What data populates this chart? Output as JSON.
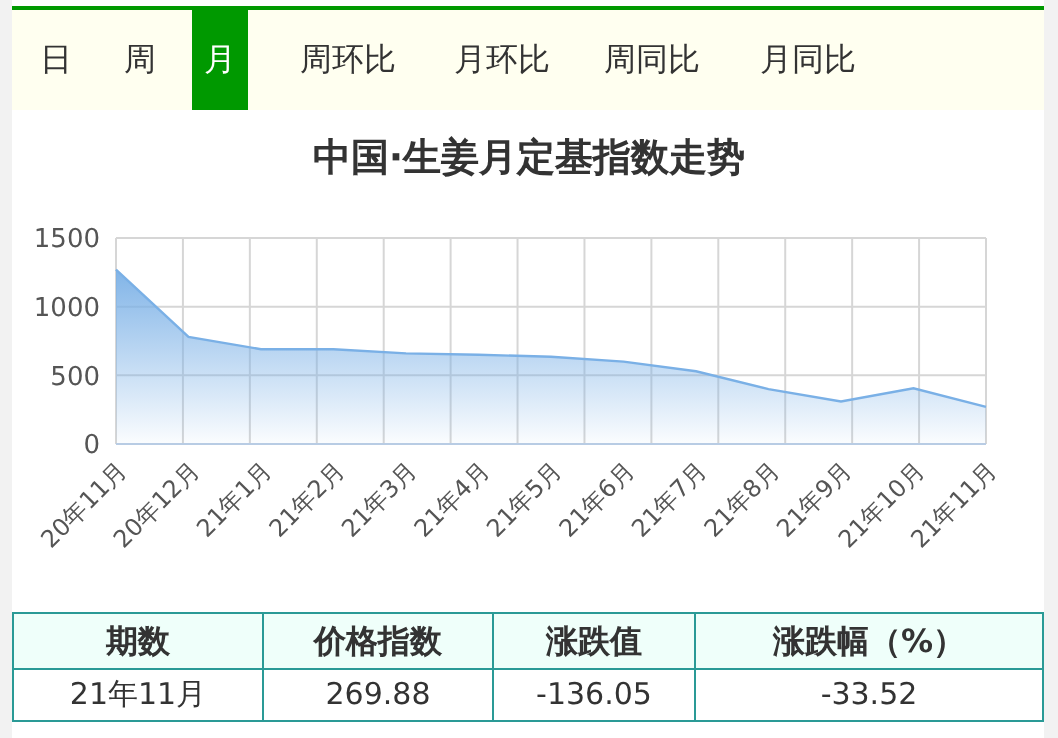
{
  "chart_data": {
    "type": "area",
    "title": "中国·生姜月定基指数走势",
    "categories": [
      "20年11月",
      "20年12月",
      "21年1月",
      "21年2月",
      "21年3月",
      "21年4月",
      "21年5月",
      "21年6月",
      "21年7月",
      "21年8月",
      "21年9月",
      "21年10月",
      "21年11月"
    ],
    "series": [
      {
        "color": "#7ab0e6",
        "values": [
          1270,
          780,
          690,
          690,
          660,
          650,
          635,
          600,
          530,
          400,
          310,
          405.93,
          269.88
        ]
      }
    ],
    "ylim": [
      0,
      1500
    ],
    "yticks": [
      0,
      500,
      1000,
      1500
    ],
    "grid": true,
    "annotations": [
      "日",
      "周",
      "月",
      "周环比",
      "月环比",
      "周同比",
      "月同比",
      "期数",
      "价格指数",
      "涨跌值",
      "涨跌幅（%）",
      "21年11月",
      "269.88",
      "-136.05",
      "-33.52"
    ]
  }
}
